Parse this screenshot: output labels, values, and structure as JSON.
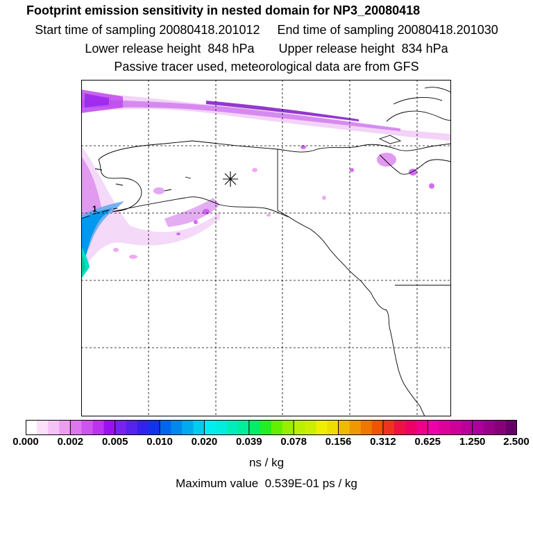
{
  "header": {
    "title": "Footprint emission sensitivity in nested domain for NP3_20080418",
    "sampling_line": "Start time of sampling 20080418.201012     End time of sampling 20080418.201030",
    "release_line": "Lower release height  848 hPa       Upper release height  834 hPa",
    "tracer_line": "Passive tracer used, meteorological data are from GFS"
  },
  "map": {
    "release_marker": "asterisk-icon",
    "point_label": "1",
    "line_color": "#000000"
  },
  "legend": {
    "ticks": [
      "0.000",
      "0.002",
      "0.005",
      "0.010",
      "0.020",
      "0.039",
      "0.078",
      "0.156",
      "0.312",
      "0.625",
      "1.250",
      "2.500"
    ],
    "colors": [
      "#ffffff",
      "#fbe0fb",
      "#f5c3f5",
      "#ee9eee",
      "#dd77ee",
      "#cc55ee",
      "#bb33ee",
      "#9911ee",
      "#7722ee",
      "#5522ee",
      "#3322ee",
      "#1133ee",
      "#0066ee",
      "#0088ee",
      "#00aaee",
      "#00ccee",
      "#00eeee",
      "#00eedd",
      "#00eebb",
      "#00ee99",
      "#00ee66",
      "#22ee22",
      "#66ee00",
      "#99ee00",
      "#bbee00",
      "#ccee00",
      "#eeee00",
      "#eedd00",
      "#eebb00",
      "#ee9900",
      "#ee7700",
      "#ee5500",
      "#ee3322",
      "#ee1144",
      "#ee0066",
      "#ee0088",
      "#ee00aa",
      "#dd0099",
      "#cc0099",
      "#bb0099",
      "#aa0099",
      "#990088",
      "#880077",
      "#660066"
    ],
    "units": "ns / kg",
    "max_value": "Maximum value  0.539E-01 ps / kg"
  }
}
